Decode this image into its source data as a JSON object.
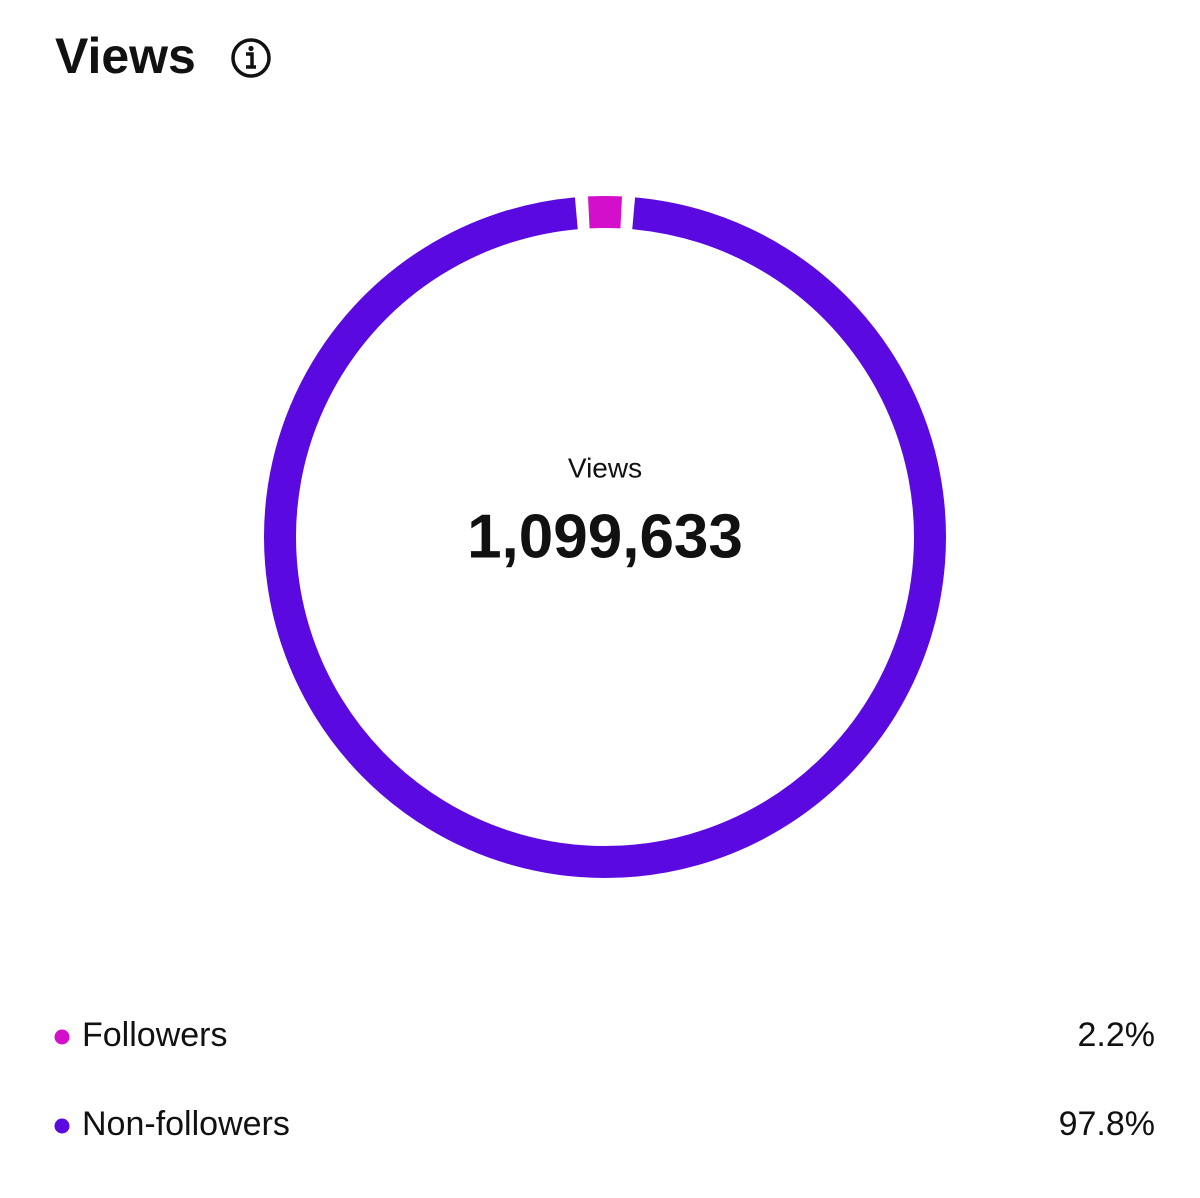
{
  "chart_data": {
    "type": "donut",
    "title": "Views",
    "center_label": "Views",
    "total": "1,099,633",
    "categories": [
      "Followers",
      "Non-followers"
    ],
    "values": [
      2.2,
      97.8
    ],
    "value_labels": [
      "2.2%",
      "97.8%"
    ],
    "colors": [
      "#d40fcb",
      "#5a0ae0"
    ]
  }
}
